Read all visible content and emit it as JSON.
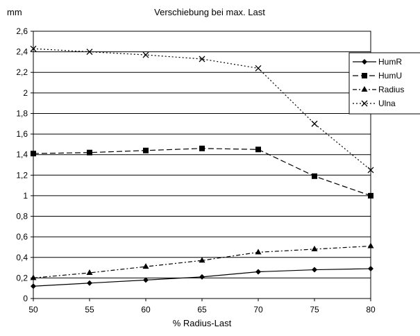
{
  "chart_data": {
    "type": "line",
    "title": "Verschiebung bei max. Last",
    "xlabel": "% Radius-Last",
    "ylabel": "mm",
    "x": [
      50,
      55,
      60,
      65,
      70,
      75,
      80
    ],
    "xlim": [
      50,
      80
    ],
    "ylim": [
      0,
      2.6
    ],
    "x_ticks": [
      "50",
      "55",
      "60",
      "65",
      "70",
      "75",
      "80"
    ],
    "y_ticks": [
      "0",
      "0,2",
      "0,4",
      "0,6",
      "0,8",
      "1",
      "1,2",
      "1,4",
      "1,6",
      "1,8",
      "2",
      "2,2",
      "2,4",
      "2,6"
    ],
    "grid": "horizontal",
    "legend_position": "right",
    "series": [
      {
        "name": "HumR",
        "values": [
          0.12,
          0.15,
          0.18,
          0.21,
          0.26,
          0.28,
          0.29
        ],
        "marker": "diamond",
        "dash": "solid"
      },
      {
        "name": "HumU",
        "values": [
          1.41,
          1.42,
          1.44,
          1.46,
          1.45,
          1.19,
          1.0
        ],
        "marker": "square",
        "dash": "long-dash"
      },
      {
        "name": "Radius",
        "values": [
          0.2,
          0.25,
          0.31,
          0.37,
          0.45,
          0.48,
          0.51
        ],
        "marker": "triangle",
        "dash": "dash-dot"
      },
      {
        "name": "Ulna",
        "values": [
          2.43,
          2.4,
          2.37,
          2.33,
          2.24,
          1.7,
          1.25
        ],
        "marker": "x",
        "dash": "dotted"
      }
    ]
  }
}
